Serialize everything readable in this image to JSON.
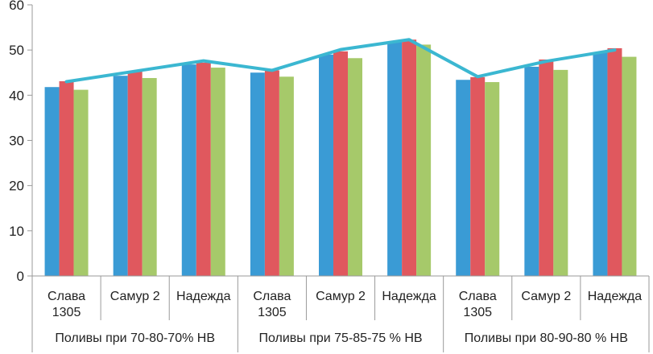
{
  "chart_data": {
    "type": "bar",
    "categories": [
      [
        "Слава",
        "1305"
      ],
      [
        "Самур 2"
      ],
      [
        "Надежда"
      ],
      [
        "Слава",
        "1305"
      ],
      [
        "Самур 2"
      ],
      [
        "Надежда"
      ],
      [
        "Слава",
        "1305"
      ],
      [
        "Самур 2"
      ],
      [
        "Надежда"
      ]
    ],
    "groups": [
      "Поливы при 70-80-70% НВ",
      "Поливы при 75-85-75 % НВ",
      "Поливы при 80-90-80 % НВ"
    ],
    "series": [
      {
        "values": [
          41.8,
          44.3,
          46.8,
          45.0,
          49.0,
          51.8,
          43.4,
          46.3,
          49.4
        ]
      },
      {
        "values": [
          43.1,
          45.3,
          47.2,
          45.5,
          49.7,
          52.3,
          44.0,
          47.9,
          50.4
        ]
      },
      {
        "values": [
          41.2,
          43.8,
          46.1,
          44.1,
          48.2,
          51.2,
          42.9,
          45.6,
          48.5
        ]
      }
    ],
    "line": {
      "values": [
        43.0,
        45.3,
        47.6,
        45.5,
        50.1,
        52.3,
        44.1,
        47.5,
        50.0
      ]
    },
    "ylim": [
      0,
      60
    ],
    "yticks": [
      0,
      10,
      20,
      30,
      40,
      50,
      60
    ],
    "grid": false,
    "colors": {
      "series": [
        "#3a9bd5",
        "#e0585e",
        "#a6c96a"
      ],
      "line": "#3bb7d1",
      "axis": "#9a9a9a"
    }
  }
}
